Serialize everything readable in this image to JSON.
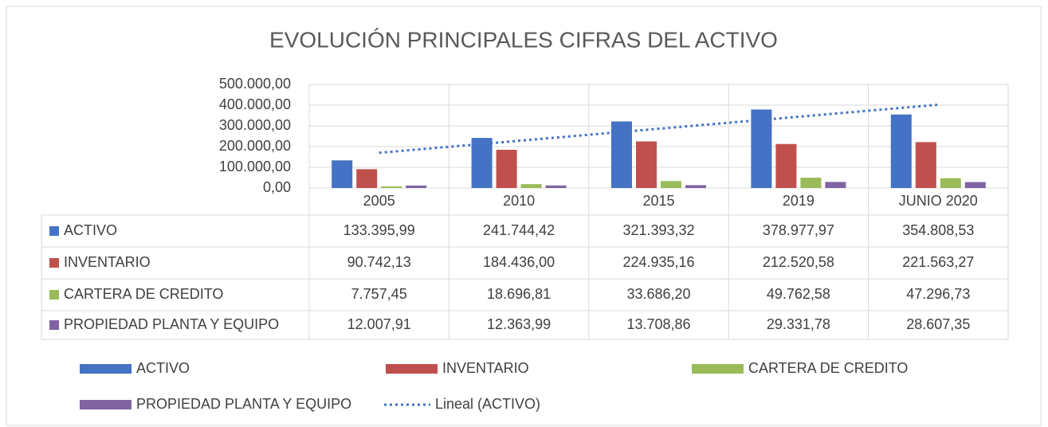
{
  "chart_data": {
    "type": "bar",
    "title": "EVOLUCIÓN PRINCIPALES CIFRAS DEL ACTIVO",
    "categories": [
      "2005",
      "2010",
      "2015",
      "2019",
      "JUNIO 2020"
    ],
    "series": [
      {
        "name": "ACTIVO",
        "color": "#4472c4",
        "values": [
          133395.99,
          241744.42,
          321393.32,
          378977.97,
          354808.53
        ],
        "value_labels": [
          "133.395,99",
          "241.744,42",
          "321.393,32",
          "378.977,97",
          "354.808,53"
        ]
      },
      {
        "name": "INVENTARIO",
        "color": "#c0504d",
        "values": [
          90742.13,
          184436.0,
          224935.16,
          212520.58,
          221563.27
        ],
        "value_labels": [
          "90.742,13",
          "184.436,00",
          "224.935,16",
          "212.520,58",
          "221.563,27"
        ]
      },
      {
        "name": "CARTERA DE CREDITO",
        "color": "#9bbb59",
        "values": [
          7757.45,
          18696.81,
          33686.2,
          49762.58,
          47296.73
        ],
        "value_labels": [
          "7.757,45",
          "18.696,81",
          "33.686,20",
          "49.762,58",
          "47.296,73"
        ]
      },
      {
        "name": "PROPIEDAD PLANTA Y EQUIPO",
        "color": "#8064a2",
        "values": [
          12007.91,
          12363.99,
          13708.86,
          29331.78,
          28607.35
        ],
        "value_labels": [
          "12.007,91",
          "12.363,99",
          "13.708,86",
          "29.331,78",
          "28.607,35"
        ]
      }
    ],
    "trendline": {
      "name": "Lineal (ACTIVO)",
      "series": 0,
      "color": "#4472c4"
    },
    "ylim": [
      0,
      500000
    ],
    "yticks": [
      {
        "value": 0,
        "label": "0,00"
      },
      {
        "value": 100000,
        "label": "100.000,00"
      },
      {
        "value": 200000,
        "label": "200.000,00"
      },
      {
        "value": 300000,
        "label": "300.000,00"
      },
      {
        "value": 400000,
        "label": "400.000,00"
      },
      {
        "value": 500000,
        "label": "500.000,00"
      }
    ],
    "grid": true
  }
}
